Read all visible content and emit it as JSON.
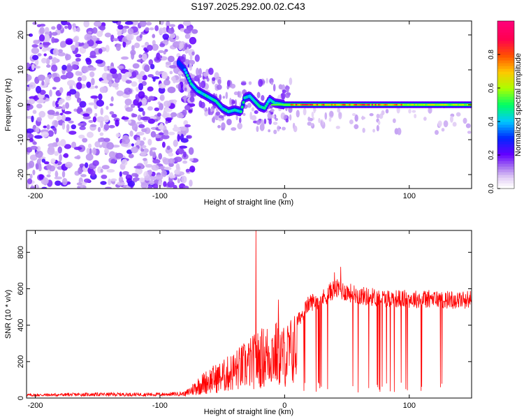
{
  "title": "S197.2025.292.00.02.C43",
  "chart_data": [
    {
      "type": "heatmap",
      "xlabel": "Height of straight line (km)",
      "ylabel": "Frequency (Hz)",
      "xlim": [
        -207,
        150
      ],
      "ylim": [
        -24,
        24
      ],
      "xticks": [
        -200,
        -100,
        0,
        100
      ],
      "yticks": [
        -20,
        -10,
        0,
        10,
        20
      ],
      "colorbar": {
        "label": "Normalized spectral amplitude",
        "range": [
          0,
          1
        ],
        "ticks": [
          0.0,
          0.2,
          0.4,
          0.6,
          0.8
        ],
        "tick_labels": [
          "0.0",
          "0.2",
          "0.4",
          "0.6",
          "0.8"
        ],
        "colors": [
          "#ffffff",
          "#e6d2f5",
          "#b48cf0",
          "#6400ff",
          "#0000ff",
          "#00c8ff",
          "#00ff64",
          "#c8ff00",
          "#ffa000",
          "#ff0000",
          "#ff0096",
          "#ff0064"
        ]
      },
      "noise_region_km": [
        -207,
        -80
      ],
      "signal_track": [
        {
          "x": -85,
          "y": 12
        },
        {
          "x": -80,
          "y": 10
        },
        {
          "x": -75,
          "y": 6
        },
        {
          "x": -70,
          "y": 4
        },
        {
          "x": -65,
          "y": 3
        },
        {
          "x": -60,
          "y": 2
        },
        {
          "x": -55,
          "y": 1
        },
        {
          "x": -50,
          "y": -1
        },
        {
          "x": -45,
          "y": -2
        },
        {
          "x": -40,
          "y": -1.5
        },
        {
          "x": -35,
          "y": -2
        },
        {
          "x": -32,
          "y": 2
        },
        {
          "x": -28,
          "y": 2.5
        },
        {
          "x": -24,
          "y": 1
        },
        {
          "x": -20,
          "y": -0.5
        },
        {
          "x": -16,
          "y": -1
        },
        {
          "x": -12,
          "y": 1.5
        },
        {
          "x": -8,
          "y": 0.5
        },
        {
          "x": 0,
          "y": 0
        },
        {
          "x": 50,
          "y": 0
        },
        {
          "x": 100,
          "y": 0
        },
        {
          "x": 150,
          "y": 0
        }
      ]
    },
    {
      "type": "line",
      "xlabel": "Height of straight line (km)",
      "ylabel": "SNR (10 * v/v)",
      "xlim": [
        -207,
        150
      ],
      "ylim": [
        0,
        920
      ],
      "xticks": [
        -200,
        -100,
        0,
        100
      ],
      "yticks": [
        0,
        200,
        400,
        600,
        800
      ],
      "color": "#ff0000",
      "series": [
        {
          "name": "SNR",
          "envelope": [
            {
              "x": -207,
              "y": 20
            },
            {
              "x": -150,
              "y": 25
            },
            {
              "x": -100,
              "y": 25
            },
            {
              "x": -80,
              "y": 30
            },
            {
              "x": -70,
              "y": 100
            },
            {
              "x": -60,
              "y": 150
            },
            {
              "x": -50,
              "y": 180
            },
            {
              "x": -40,
              "y": 230
            },
            {
              "x": -30,
              "y": 280
            },
            {
              "x": -20,
              "y": 330
            },
            {
              "x": -10,
              "y": 380
            },
            {
              "x": 0,
              "y": 350
            },
            {
              "x": 10,
              "y": 430
            },
            {
              "x": 20,
              "y": 540
            },
            {
              "x": 30,
              "y": 560
            },
            {
              "x": 40,
              "y": 620
            },
            {
              "x": 50,
              "y": 600
            },
            {
              "x": 60,
              "y": 580
            },
            {
              "x": 80,
              "y": 565
            },
            {
              "x": 100,
              "y": 560
            },
            {
              "x": 120,
              "y": 560
            },
            {
              "x": 140,
              "y": 555
            },
            {
              "x": 150,
              "y": 560
            }
          ],
          "spikes": [
            {
              "x": -23,
              "y": 920
            },
            {
              "x": -5,
              "y": 540
            },
            {
              "x": 45,
              "y": 720
            },
            {
              "x": 40,
              "y": 690
            }
          ]
        }
      ]
    }
  ]
}
